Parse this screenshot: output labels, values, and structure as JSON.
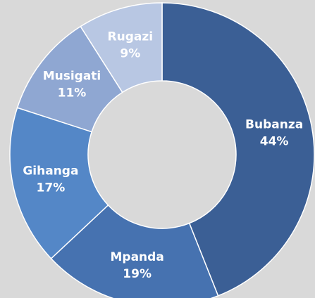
{
  "chart_data": {
    "type": "donut",
    "categories": [
      "Bubanza",
      "Mpanda",
      "Gihanga",
      "Musigati",
      "Rugazi"
    ],
    "values": [
      44,
      19,
      17,
      11,
      9
    ],
    "value_labels": [
      "44%",
      "19%",
      "17%",
      "11%",
      "9%"
    ],
    "colors": [
      "#3b5f95",
      "#4672b0",
      "#5487c7",
      "#8fa7d2",
      "#b8c7e3"
    ]
  }
}
